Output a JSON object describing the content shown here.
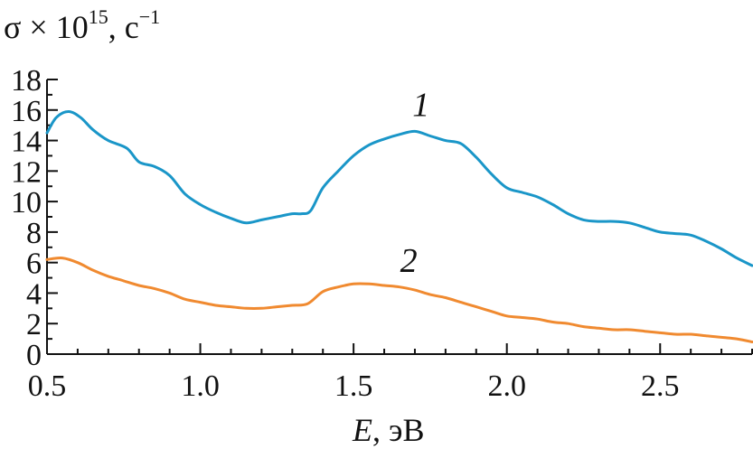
{
  "chart_data": {
    "type": "line",
    "ylabel_parts": {
      "base": "σ × 10",
      "exp": "15",
      "unit": ", c",
      "unit_exp": "−1"
    },
    "xlabel_parts": {
      "var": "E",
      "unit": ", эВ"
    },
    "xlim": [
      0.5,
      2.8
    ],
    "ylim": [
      0,
      18
    ],
    "xticks": [
      0.5,
      1.0,
      1.5,
      2.0,
      2.5
    ],
    "xtick_labels": [
      "0.5",
      "1.0",
      "1.5",
      "2.0",
      "2.5"
    ],
    "yticks": [
      0,
      2,
      4,
      6,
      8,
      10,
      12,
      14,
      16,
      18
    ],
    "ytick_labels": [
      "0",
      "2",
      "4",
      "6",
      "8",
      "10",
      "12",
      "14",
      "16",
      "18"
    ],
    "grid": false,
    "series": [
      {
        "name": "1",
        "color": "#1a96c8",
        "label_at": [
          1.72,
          15.6
        ],
        "x": [
          0.5,
          0.53,
          0.57,
          0.61,
          0.65,
          0.7,
          0.76,
          0.8,
          0.85,
          0.9,
          0.95,
          1.0,
          1.05,
          1.1,
          1.15,
          1.2,
          1.25,
          1.3,
          1.33,
          1.36,
          1.4,
          1.45,
          1.5,
          1.55,
          1.6,
          1.65,
          1.7,
          1.75,
          1.8,
          1.85,
          1.9,
          1.95,
          2.0,
          2.05,
          2.1,
          2.15,
          2.2,
          2.25,
          2.3,
          2.35,
          2.4,
          2.45,
          2.5,
          2.55,
          2.6,
          2.65,
          2.7,
          2.75,
          2.8
        ],
        "y": [
          14.5,
          15.5,
          15.9,
          15.5,
          14.7,
          14.0,
          13.5,
          12.6,
          12.3,
          11.7,
          10.5,
          9.8,
          9.3,
          8.9,
          8.6,
          8.8,
          9.0,
          9.2,
          9.2,
          9.4,
          10.9,
          12.0,
          13.0,
          13.7,
          14.1,
          14.4,
          14.6,
          14.3,
          14.0,
          13.8,
          12.9,
          11.8,
          10.9,
          10.6,
          10.3,
          9.8,
          9.2,
          8.8,
          8.7,
          8.7,
          8.6,
          8.3,
          8.0,
          7.9,
          7.8,
          7.4,
          6.9,
          6.3,
          5.8
        ]
      },
      {
        "name": "2",
        "color": "#f08a30",
        "label_at": [
          1.68,
          5.4
        ],
        "x": [
          0.5,
          0.55,
          0.6,
          0.65,
          0.7,
          0.75,
          0.8,
          0.85,
          0.9,
          0.95,
          1.0,
          1.05,
          1.1,
          1.15,
          1.2,
          1.25,
          1.3,
          1.35,
          1.4,
          1.45,
          1.5,
          1.55,
          1.6,
          1.65,
          1.7,
          1.75,
          1.8,
          1.85,
          1.9,
          1.95,
          2.0,
          2.05,
          2.1,
          2.15,
          2.2,
          2.25,
          2.3,
          2.35,
          2.4,
          2.45,
          2.5,
          2.55,
          2.6,
          2.65,
          2.7,
          2.75,
          2.8
        ],
        "y": [
          6.2,
          6.3,
          6.0,
          5.5,
          5.1,
          4.8,
          4.5,
          4.3,
          4.0,
          3.6,
          3.4,
          3.2,
          3.1,
          3.0,
          3.0,
          3.1,
          3.2,
          3.3,
          4.1,
          4.4,
          4.6,
          4.6,
          4.5,
          4.4,
          4.2,
          3.9,
          3.7,
          3.4,
          3.1,
          2.8,
          2.5,
          2.4,
          2.3,
          2.1,
          2.0,
          1.8,
          1.7,
          1.6,
          1.6,
          1.5,
          1.4,
          1.3,
          1.3,
          1.2,
          1.1,
          1.0,
          0.8
        ]
      }
    ]
  }
}
